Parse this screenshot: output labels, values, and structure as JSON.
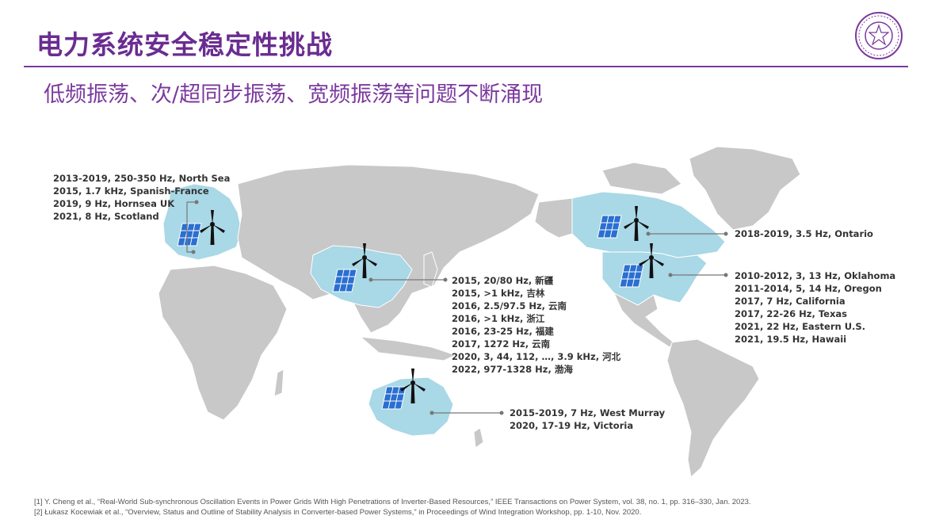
{
  "title": "电力系统安全稳定性挑战",
  "subtitle": "低频振荡、次/超同步振荡、宽频振荡等问题不断涌现",
  "colors": {
    "title": "#6a2c91",
    "land": "#c8c8c8",
    "highlight": "#a9d8e6",
    "solar": "#2a6fd1"
  },
  "icons": [
    "university-seal-icon",
    "wind-turbine-icon",
    "solar-panel-icon"
  ],
  "regions": {
    "europe": {
      "events": [
        "2013-2019, 250-350 Hz, North Sea",
        "2015, 1.7 kHz, Spanish-France",
        "2019, 9 Hz, Hornsea UK",
        "2021, 8 Hz, Scotland"
      ]
    },
    "china": {
      "events": [
        "2015, 20/80 Hz, 新疆",
        "2015, >1 kHz, 吉林",
        "2016, 2.5/97.5 Hz, 云南",
        "2016, >1 kHz, 浙江",
        "2016, 23-25 Hz, 福建",
        "2017, 1272 Hz, 云南",
        "2020, 3, 44, 112, …, 3.9 kHz, 河北",
        "2022, 977-1328 Hz, 渤海"
      ]
    },
    "canada": {
      "events": [
        "2018-2019, 3.5 Hz, Ontario"
      ]
    },
    "usa": {
      "events": [
        "2010-2012, 3, 13 Hz, Oklahoma",
        "2011-2014, 5, 14 Hz, Oregon",
        "2017, 7 Hz, California",
        "2017, 22-26 Hz, Texas",
        "2021, 22 Hz, Eastern U.S.",
        "2021, 19.5 Hz, Hawaii"
      ]
    },
    "australia": {
      "events": [
        "2015-2019, 7 Hz, West Murray",
        "2020, 17-19 Hz, Victoria"
      ]
    }
  },
  "references": [
    "[1] Y. Cheng et al., “Real-World Sub-synchronous Oscillation Events in Power Grids With High Penetrations of Inverter-Based Resources,” IEEE Transactions on Power System, vol. 38, no. 1, pp. 316–330, Jan. 2023.",
    "[2] Łukasz Kocewiak et al., “Overview, Status and Outline of Stability Analysis in Converter-based Power Systems,” in Proceedings of Wind Integration Workshop, pp. 1-10, Nov. 2020."
  ]
}
